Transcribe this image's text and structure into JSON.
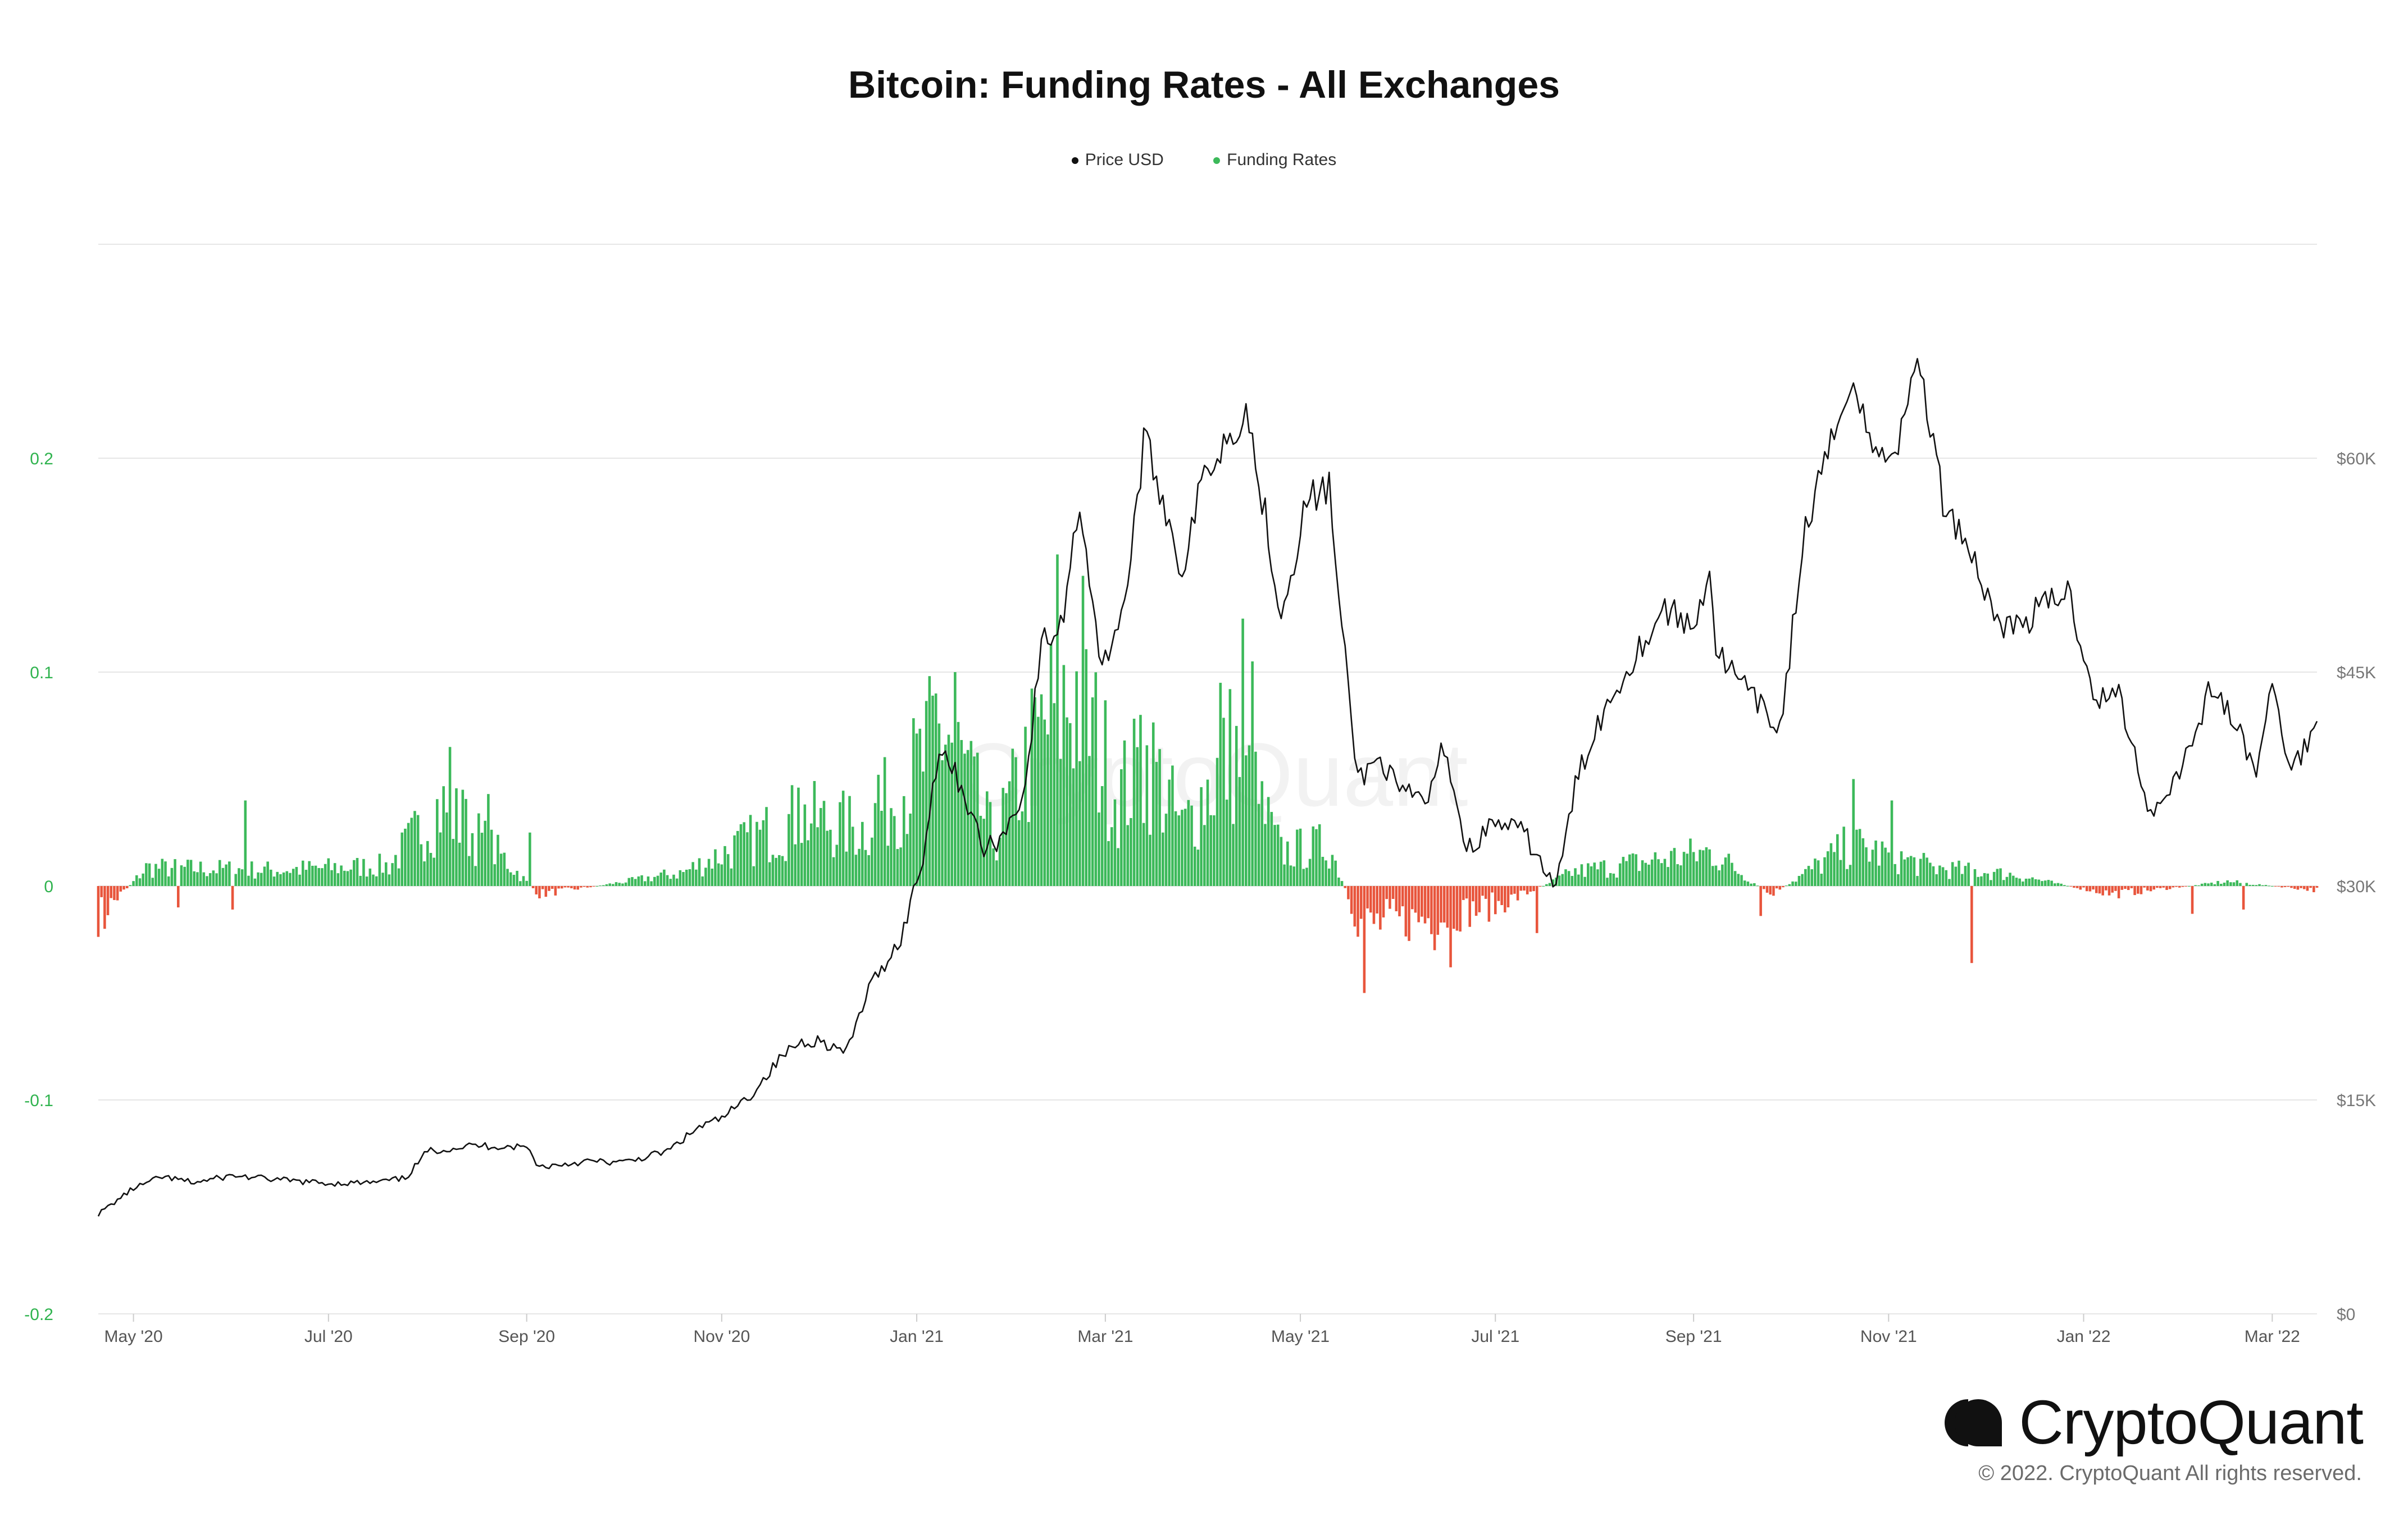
{
  "title": "Bitcoin: Funding Rates - All Exchanges",
  "legend": [
    {
      "label": "Price USD",
      "color": "#111111"
    },
    {
      "label": "Funding Rates",
      "color": "#3cb95a"
    }
  ],
  "watermark": "CryptoQuant",
  "brand": {
    "name": "CryptoQuant",
    "copyright": "© 2022. CryptoQuant All rights reserved."
  },
  "chart_data": {
    "type": "bar+line",
    "title": "Bitcoin: Funding Rates - All Exchanges",
    "x_range": [
      "2020-04-20",
      "2022-03-15"
    ],
    "x_ticks": [
      {
        "label": "May '20",
        "date": "2020-05-01"
      },
      {
        "label": "Jul '20",
        "date": "2020-07-01"
      },
      {
        "label": "Sep '20",
        "date": "2020-09-01"
      },
      {
        "label": "Nov '20",
        "date": "2020-11-01"
      },
      {
        "label": "Jan '21",
        "date": "2021-01-01"
      },
      {
        "label": "Mar '21",
        "date": "2021-03-01"
      },
      {
        "label": "May '21",
        "date": "2021-05-01"
      },
      {
        "label": "Jul '21",
        "date": "2021-07-01"
      },
      {
        "label": "Sep '21",
        "date": "2021-09-01"
      },
      {
        "label": "Nov '21",
        "date": "2021-11-01"
      },
      {
        "label": "Jan '22",
        "date": "2022-01-01"
      },
      {
        "label": "Mar '22",
        "date": "2022-03-01"
      }
    ],
    "y_left": {
      "min": -0.2,
      "max": 0.3,
      "ticks": [
        {
          "value": 0.2,
          "label": "0.2"
        },
        {
          "value": 0.1,
          "label": "0.1"
        },
        {
          "value": 0,
          "label": "0"
        },
        {
          "value": -0.1,
          "label": "-0.1"
        },
        {
          "value": -0.2,
          "label": "-0.2"
        }
      ],
      "color": "#2fb34e"
    },
    "y_right": {
      "min": 0,
      "max": 75000,
      "ticks": [
        {
          "value": 60000,
          "label": "$60K"
        },
        {
          "value": 45000,
          "label": "$45K"
        },
        {
          "value": 30000,
          "label": "$30K"
        },
        {
          "value": 15000,
          "label": "$15K"
        },
        {
          "value": 0,
          "label": "$0"
        }
      ],
      "color": "#777777"
    },
    "series": [
      {
        "name": "Price USD",
        "axis": "right",
        "type": "line",
        "color": "#111111",
        "points": [
          [
            "2020-04-20",
            7000
          ],
          [
            "2020-05-01",
            8800
          ],
          [
            "2020-05-10",
            9600
          ],
          [
            "2020-05-20",
            9200
          ],
          [
            "2020-06-01",
            9700
          ],
          [
            "2020-06-15",
            9400
          ],
          [
            "2020-07-01",
            9150
          ],
          [
            "2020-07-15",
            9200
          ],
          [
            "2020-07-25",
            9500
          ],
          [
            "2020-08-01",
            11400
          ],
          [
            "2020-08-15",
            11800
          ],
          [
            "2020-09-01",
            11700
          ],
          [
            "2020-09-05",
            10300
          ],
          [
            "2020-09-20",
            10700
          ],
          [
            "2020-10-01",
            10600
          ],
          [
            "2020-10-15",
            11400
          ],
          [
            "2020-10-25",
            13100
          ],
          [
            "2020-11-01",
            13700
          ],
          [
            "2020-11-10",
            15300
          ],
          [
            "2020-11-20",
            18100
          ],
          [
            "2020-11-25",
            19000
          ],
          [
            "2020-12-01",
            19200
          ],
          [
            "2020-12-10",
            18300
          ],
          [
            "2020-12-17",
            22800
          ],
          [
            "2020-12-27",
            26300
          ],
          [
            "2021-01-03",
            32000
          ],
          [
            "2021-01-08",
            40000
          ],
          [
            "2021-01-15",
            37000
          ],
          [
            "2021-01-22",
            32500
          ],
          [
            "2021-01-28",
            33500
          ],
          [
            "2021-02-04",
            37000
          ],
          [
            "2021-02-09",
            47000
          ],
          [
            "2021-02-15",
            48000
          ],
          [
            "2021-02-21",
            57000
          ],
          [
            "2021-02-28",
            45000
          ],
          [
            "2021-03-08",
            51000
          ],
          [
            "2021-03-13",
            61200
          ],
          [
            "2021-03-18",
            58000
          ],
          [
            "2021-03-25",
            52000
          ],
          [
            "2021-04-01",
            59000
          ],
          [
            "2021-04-14",
            63500
          ],
          [
            "2021-04-20",
            56000
          ],
          [
            "2021-04-25",
            49000
          ],
          [
            "2021-05-03",
            57000
          ],
          [
            "2021-05-10",
            58000
          ],
          [
            "2021-05-13",
            50000
          ],
          [
            "2021-05-19",
            37500
          ],
          [
            "2021-05-26",
            39000
          ],
          [
            "2021-06-01",
            36500
          ],
          [
            "2021-06-10",
            36000
          ],
          [
            "2021-06-15",
            40000
          ],
          [
            "2021-06-22",
            32500
          ],
          [
            "2021-07-01",
            34500
          ],
          [
            "2021-07-10",
            33700
          ],
          [
            "2021-07-20",
            29800
          ],
          [
            "2021-07-26",
            37000
          ],
          [
            "2021-08-01",
            41000
          ],
          [
            "2021-08-13",
            46000
          ],
          [
            "2021-08-23",
            49500
          ],
          [
            "2021-09-01",
            48000
          ],
          [
            "2021-09-06",
            52500
          ],
          [
            "2021-09-08",
            46500
          ],
          [
            "2021-09-20",
            43000
          ],
          [
            "2021-09-28",
            41000
          ],
          [
            "2021-10-06",
            55000
          ],
          [
            "2021-10-15",
            61500
          ],
          [
            "2021-10-20",
            66000
          ],
          [
            "2021-10-28",
            60000
          ],
          [
            "2021-11-05",
            61500
          ],
          [
            "2021-11-10",
            67500
          ],
          [
            "2021-11-18",
            57000
          ],
          [
            "2021-11-26",
            54000
          ],
          [
            "2021-12-04",
            49000
          ],
          [
            "2021-12-10",
            48000
          ],
          [
            "2021-12-27",
            50800
          ],
          [
            "2022-01-05",
            43000
          ],
          [
            "2022-01-12",
            43500
          ],
          [
            "2022-01-22",
            35000
          ],
          [
            "2022-02-01",
            38500
          ],
          [
            "2022-02-10",
            44000
          ],
          [
            "2022-02-16",
            42000
          ],
          [
            "2022-02-24",
            38000
          ],
          [
            "2022-03-01",
            44000
          ],
          [
            "2022-03-07",
            38000
          ],
          [
            "2022-03-15",
            41500
          ]
        ]
      },
      {
        "name": "Funding Rates",
        "axis": "left",
        "type": "bar",
        "positive_color": "#3cb95a",
        "negative_color": "#e8553c",
        "daily_from": "2020-04-20",
        "daily_to": "2022-03-15",
        "anchors": [
          [
            "2020-04-20",
            -0.015
          ],
          [
            "2020-05-05",
            0.008
          ],
          [
            "2020-06-15",
            0.007
          ],
          [
            "2020-07-20",
            0.009
          ],
          [
            "2020-08-05",
            0.035
          ],
          [
            "2020-08-25",
            0.012
          ],
          [
            "2020-09-05",
            -0.004
          ],
          [
            "2020-10-20",
            0.006
          ],
          [
            "2020-11-10",
            0.02
          ],
          [
            "2020-11-25",
            0.03
          ],
          [
            "2020-12-15",
            0.025
          ],
          [
            "2021-01-01",
            0.05
          ],
          [
            "2021-01-10",
            0.07
          ],
          [
            "2021-01-25",
            0.02
          ],
          [
            "2021-02-10",
            0.07
          ],
          [
            "2021-02-20",
            0.085
          ],
          [
            "2021-03-05",
            0.04
          ],
          [
            "2021-03-15",
            0.055
          ],
          [
            "2021-03-25",
            0.025
          ],
          [
            "2021-04-10",
            0.06
          ],
          [
            "2021-04-25",
            0.015
          ],
          [
            "2021-05-10",
            0.018
          ],
          [
            "2021-05-20",
            -0.02
          ],
          [
            "2021-06-15",
            -0.015
          ],
          [
            "2021-07-01",
            -0.01
          ],
          [
            "2021-07-25",
            0.006
          ],
          [
            "2021-09-07",
            0.015
          ],
          [
            "2021-09-25",
            -0.004
          ],
          [
            "2021-10-20",
            0.018
          ],
          [
            "2021-11-15",
            0.008
          ],
          [
            "2021-12-10",
            0.005
          ],
          [
            "2022-01-10",
            -0.004
          ],
          [
            "2022-02-15",
            0.002
          ],
          [
            "2022-03-15",
            -0.002
          ]
        ],
        "spikes": [
          [
            "2020-04-22",
            -0.02
          ],
          [
            "2020-05-15",
            -0.01
          ],
          [
            "2020-06-01",
            -0.011
          ],
          [
            "2020-06-05",
            0.04
          ],
          [
            "2020-08-08",
            0.065
          ],
          [
            "2020-08-12",
            0.045
          ],
          [
            "2020-08-20",
            0.043
          ],
          [
            "2020-09-02",
            0.025
          ],
          [
            "2020-11-25",
            0.046
          ],
          [
            "2020-12-20",
            0.052
          ],
          [
            "2021-01-07",
            0.09
          ],
          [
            "2021-01-13",
            0.1
          ],
          [
            "2021-02-14",
            0.155
          ],
          [
            "2021-02-22",
            0.145
          ],
          [
            "2021-03-12",
            0.08
          ],
          [
            "2021-04-06",
            0.095
          ],
          [
            "2021-04-13",
            0.125
          ],
          [
            "2021-04-16",
            0.105
          ],
          [
            "2021-05-21",
            -0.05
          ],
          [
            "2021-06-12",
            -0.03
          ],
          [
            "2021-06-17",
            -0.038
          ],
          [
            "2021-07-14",
            -0.022
          ],
          [
            "2021-10-21",
            0.05
          ],
          [
            "2021-11-02",
            0.04
          ],
          [
            "2021-11-27",
            -0.036
          ],
          [
            "2021-09-22",
            -0.014
          ],
          [
            "2022-02-04",
            -0.013
          ],
          [
            "2022-02-20",
            -0.011
          ]
        ]
      }
    ]
  }
}
